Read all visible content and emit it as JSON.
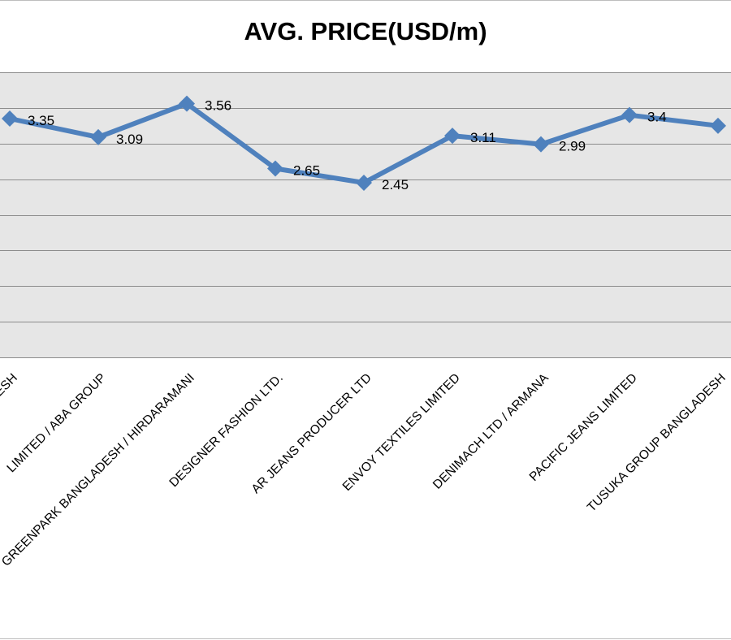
{
  "chart_data": {
    "type": "line",
    "title": "AVG. PRICE(USD/m)",
    "xlabel": "",
    "ylabel": "",
    "categories": [
      "DESH",
      "LIMITED / ABA GROUP",
      "GREENPARK BANGLADESH / HIRDARAMANI",
      "DESIGNER FASHION LTD.",
      "AR JEANS PRODUCER LTD",
      "ENVOY TEXTILES LIMITED",
      "DENIMACH LTD / ARMANA",
      "PACIFIC JEANS LIMITED",
      "TUSUKA GROUP BANGLADESH"
    ],
    "series": [
      {
        "values": [
          3.35,
          3.09,
          3.56,
          2.65,
          2.45,
          3.11,
          2.99,
          3.4,
          3.25
        ],
        "data_labels": [
          "3.35",
          "3.09",
          "3.56",
          "2.65",
          "2.45",
          "3.11",
          "2.99",
          "3.4",
          ""
        ],
        "color": "#4f81bd"
      }
    ],
    "ylim": [
      0,
      4
    ],
    "y_step": 0.5,
    "grid": true,
    "legend": "none",
    "plot_background": "#e6e6e6",
    "gridline_color": "#8c8c8c"
  }
}
